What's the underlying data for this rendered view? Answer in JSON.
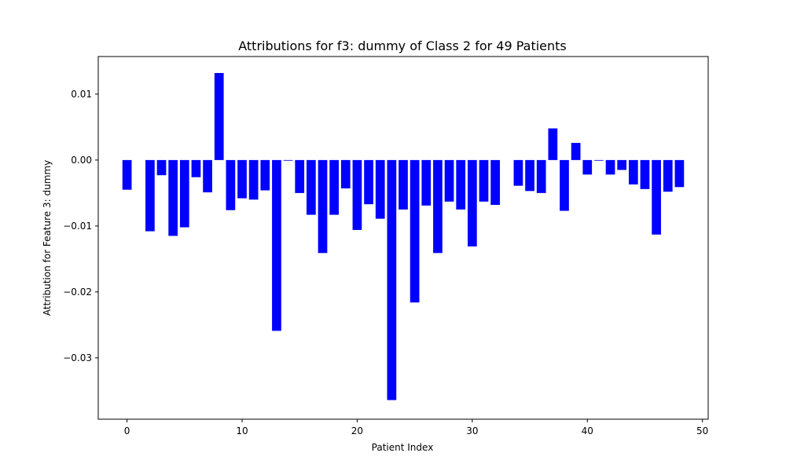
{
  "chart_data": {
    "type": "bar",
    "title": "Attributions for f3: dummy of Class 2 for 49 Patients",
    "xlabel": "Patient Index",
    "ylabel": "Attribution for Feature 3: dummy",
    "xlim": [
      -2.5,
      50.5
    ],
    "ylim": [
      -0.0393,
      0.0157
    ],
    "xticks": [
      0,
      10,
      20,
      30,
      40,
      50
    ],
    "xtick_labels": [
      "0",
      "10",
      "20",
      "30",
      "40",
      "50"
    ],
    "yticks": [
      -0.03,
      -0.02,
      -0.01,
      0.0,
      0.01
    ],
    "ytick_labels": [
      "−0.03",
      "−0.02",
      "−0.01",
      "0.00",
      "0.01"
    ],
    "bar_color": "#0000ff",
    "grid": false,
    "x": [
      0,
      1,
      2,
      3,
      4,
      5,
      6,
      7,
      8,
      9,
      10,
      11,
      12,
      13,
      14,
      15,
      16,
      17,
      18,
      19,
      20,
      21,
      22,
      23,
      24,
      25,
      26,
      27,
      28,
      29,
      30,
      31,
      32,
      33,
      34,
      35,
      36,
      37,
      38,
      39,
      40,
      41,
      42,
      43,
      44,
      45,
      46,
      47,
      48
    ],
    "values": [
      -0.0045,
      0.0,
      -0.0108,
      -0.0023,
      -0.0115,
      -0.0102,
      -0.0026,
      -0.0049,
      0.0132,
      -0.0076,
      -0.0058,
      -0.006,
      -0.0046,
      -0.0259,
      -0.0001,
      -0.005,
      -0.0083,
      -0.0141,
      -0.0083,
      -0.0043,
      -0.0106,
      -0.0067,
      -0.0089,
      -0.0364,
      -0.0075,
      -0.0216,
      -0.0069,
      -0.0141,
      -0.0063,
      -0.0075,
      -0.0131,
      -0.0063,
      -0.0068,
      0.0,
      -0.0039,
      -0.0047,
      -0.005,
      0.0048,
      -0.0077,
      0.0026,
      -0.0022,
      -0.0001,
      -0.0022,
      -0.0015,
      -0.0037,
      -0.0044,
      -0.0113,
      -0.0048,
      -0.0041
    ]
  }
}
